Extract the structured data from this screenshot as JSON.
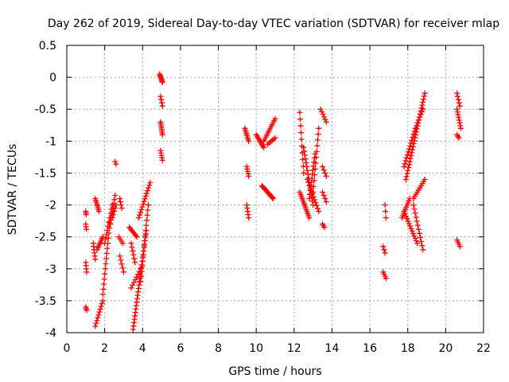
{
  "chart_data": {
    "type": "scatter",
    "title": "Day 262 of 2019, Sidereal Day-to-day VTEC variation (SDTVAR) for receiver mlap",
    "xlabel": "GPS time / hours",
    "ylabel": "SDTVAR / TECUs",
    "xlim": [
      0,
      22
    ],
    "ylim": [
      -4,
      0.5
    ],
    "xticks": [
      "0",
      "2",
      "4",
      "6",
      "8",
      "10",
      "12",
      "14",
      "16",
      "18",
      "20",
      "22"
    ],
    "yticks": [
      "0.5",
      "0",
      "-0.5",
      "-1",
      "-1.5",
      "-2",
      "-2.5",
      "-3",
      "-3.5",
      "-4"
    ],
    "grid": true,
    "marker": "+",
    "color": "#ff0000",
    "segments": [
      {
        "x0": 1.0,
        "y0": -2.1,
        "x1": 1.02,
        "y1": -2.15,
        "n": 3
      },
      {
        "x0": 1.0,
        "y0": -2.3,
        "x1": 1.03,
        "y1": -2.38,
        "n": 3
      },
      {
        "x0": 1.0,
        "y0": -2.9,
        "x1": 1.05,
        "y1": -3.05,
        "n": 4
      },
      {
        "x0": 1.0,
        "y0": -3.6,
        "x1": 1.05,
        "y1": -3.65,
        "n": 3
      },
      {
        "x0": 1.4,
        "y0": -2.6,
        "x1": 1.5,
        "y1": -2.85,
        "n": 6
      },
      {
        "x0": 1.5,
        "y0": -1.9,
        "x1": 1.7,
        "y1": -2.1,
        "n": 8
      },
      {
        "x0": 1.6,
        "y0": -2.7,
        "x1": 1.9,
        "y1": -2.5,
        "n": 8
      },
      {
        "x0": 1.5,
        "y0": -3.9,
        "x1": 1.9,
        "y1": -3.5,
        "n": 10
      },
      {
        "x0": 1.9,
        "y0": -3.4,
        "x1": 2.3,
        "y1": -2.2,
        "n": 16
      },
      {
        "x0": 2.0,
        "y0": -2.6,
        "x1": 2.4,
        "y1": -2.0,
        "n": 10
      },
      {
        "x0": 2.3,
        "y0": -2.3,
        "x1": 2.55,
        "y1": -1.85,
        "n": 8
      },
      {
        "x0": 2.4,
        "y0": -2.2,
        "x1": 2.6,
        "y1": -2.0,
        "n": 5
      },
      {
        "x0": 2.55,
        "y0": -1.32,
        "x1": 2.6,
        "y1": -1.36,
        "n": 2
      },
      {
        "x0": 2.8,
        "y0": -1.9,
        "x1": 2.9,
        "y1": -2.05,
        "n": 4
      },
      {
        "x0": 2.75,
        "y0": -2.5,
        "x1": 2.95,
        "y1": -2.6,
        "n": 4
      },
      {
        "x0": 2.8,
        "y0": -2.8,
        "x1": 3.0,
        "y1": -3.05,
        "n": 5
      },
      {
        "x0": 3.3,
        "y0": -2.35,
        "x1": 3.7,
        "y1": -2.5,
        "n": 8
      },
      {
        "x0": 3.4,
        "y0": -2.6,
        "x1": 3.6,
        "y1": -2.9,
        "n": 6
      },
      {
        "x0": 3.4,
        "y0": -3.3,
        "x1": 3.9,
        "y1": -3.0,
        "n": 8
      },
      {
        "x0": 3.5,
        "y0": -3.95,
        "x1": 4.2,
        "y1": -2.4,
        "n": 30
      },
      {
        "x0": 3.8,
        "y0": -2.2,
        "x1": 4.4,
        "y1": -1.65,
        "n": 14
      },
      {
        "x0": 3.9,
        "y0": -3.2,
        "x1": 4.3,
        "y1": -2.0,
        "n": 16
      },
      {
        "x0": 4.9,
        "y0": 0.05,
        "x1": 5.05,
        "y1": -0.08,
        "n": 8
      },
      {
        "x0": 4.95,
        "y0": -0.3,
        "x1": 5.05,
        "y1": -0.45,
        "n": 4
      },
      {
        "x0": 4.95,
        "y0": -0.7,
        "x1": 5.05,
        "y1": -0.9,
        "n": 8
      },
      {
        "x0": 4.95,
        "y0": -1.15,
        "x1": 5.05,
        "y1": -1.3,
        "n": 5
      },
      {
        "x0": 9.4,
        "y0": -0.8,
        "x1": 9.6,
        "y1": -1.0,
        "n": 8
      },
      {
        "x0": 9.5,
        "y0": -1.4,
        "x1": 9.6,
        "y1": -1.55,
        "n": 5
      },
      {
        "x0": 9.5,
        "y0": -2.0,
        "x1": 9.6,
        "y1": -2.2,
        "n": 5
      },
      {
        "x0": 10.0,
        "y0": -0.9,
        "x1": 10.4,
        "y1": -1.1,
        "n": 10
      },
      {
        "x0": 10.3,
        "y0": -1.7,
        "x1": 10.9,
        "y1": -1.9,
        "n": 16
      },
      {
        "x0": 10.4,
        "y0": -1.0,
        "x1": 11.0,
        "y1": -0.65,
        "n": 12
      },
      {
        "x0": 10.6,
        "y0": -1.05,
        "x1": 11.0,
        "y1": -0.95,
        "n": 6
      },
      {
        "x0": 12.3,
        "y0": -0.55,
        "x1": 12.5,
        "y1": -1.5,
        "n": 10
      },
      {
        "x0": 12.3,
        "y0": -1.8,
        "x1": 12.8,
        "y1": -2.2,
        "n": 14
      },
      {
        "x0": 12.5,
        "y0": -1.1,
        "x1": 13.0,
        "y1": -2.0,
        "n": 16
      },
      {
        "x0": 12.8,
        "y0": -1.9,
        "x1": 13.1,
        "y1": -1.2,
        "n": 12
      },
      {
        "x0": 13.0,
        "y0": -1.8,
        "x1": 13.3,
        "y1": -0.8,
        "n": 12
      },
      {
        "x0": 12.7,
        "y0": -1.6,
        "x1": 13.3,
        "y1": -2.1,
        "n": 12
      },
      {
        "x0": 13.4,
        "y0": -0.5,
        "x1": 13.7,
        "y1": -0.7,
        "n": 6
      },
      {
        "x0": 13.5,
        "y0": -1.4,
        "x1": 13.7,
        "y1": -1.55,
        "n": 4
      },
      {
        "x0": 13.5,
        "y0": -1.8,
        "x1": 13.7,
        "y1": -1.95,
        "n": 4
      },
      {
        "x0": 13.5,
        "y0": -2.3,
        "x1": 13.6,
        "y1": -2.35,
        "n": 3
      },
      {
        "x0": 16.7,
        "y0": -2.65,
        "x1": 16.8,
        "y1": -2.75,
        "n": 3
      },
      {
        "x0": 16.7,
        "y0": -3.05,
        "x1": 16.85,
        "y1": -3.15,
        "n": 4
      },
      {
        "x0": 16.8,
        "y0": -2.0,
        "x1": 16.85,
        "y1": -2.2,
        "n": 3
      },
      {
        "x0": 17.7,
        "y0": -2.2,
        "x1": 18.1,
        "y1": -1.9,
        "n": 10
      },
      {
        "x0": 17.8,
        "y0": -1.4,
        "x1": 18.4,
        "y1": -0.8,
        "n": 14
      },
      {
        "x0": 17.8,
        "y0": -2.1,
        "x1": 18.5,
        "y1": -2.6,
        "n": 14
      },
      {
        "x0": 18.3,
        "y0": -2.0,
        "x1": 18.8,
        "y1": -2.7,
        "n": 12
      },
      {
        "x0": 17.9,
        "y0": -1.6,
        "x1": 18.9,
        "y1": -0.25,
        "n": 30
      },
      {
        "x0": 18.3,
        "y0": -1.9,
        "x1": 18.9,
        "y1": -1.6,
        "n": 10
      },
      {
        "x0": 18.4,
        "y0": -0.8,
        "x1": 18.8,
        "y1": -0.5,
        "n": 8
      },
      {
        "x0": 20.6,
        "y0": -0.25,
        "x1": 20.75,
        "y1": -0.45,
        "n": 5
      },
      {
        "x0": 20.6,
        "y0": -0.5,
        "x1": 20.8,
        "y1": -0.8,
        "n": 8
      },
      {
        "x0": 20.6,
        "y0": -0.9,
        "x1": 20.7,
        "y1": -0.95,
        "n": 3
      },
      {
        "x0": 20.6,
        "y0": -2.55,
        "x1": 20.75,
        "y1": -2.65,
        "n": 4
      }
    ]
  }
}
